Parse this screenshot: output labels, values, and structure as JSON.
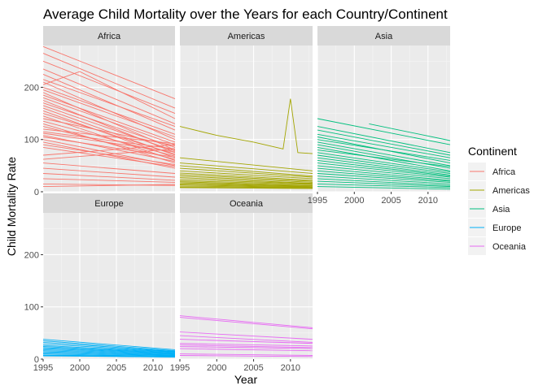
{
  "chart_data": {
    "type": "line",
    "title": "Average Child Mortality over the Years for each Country/Continent",
    "xlabel": "Year",
    "ylabel": "Child Mortality Rate",
    "xlim": [
      1995,
      2013
    ],
    "ylim": [
      0,
      280
    ],
    "x_ticks": [
      "1995",
      "2000",
      "2005",
      "2010"
    ],
    "y_ticks": [
      "0",
      "100",
      "200"
    ],
    "legend": {
      "title": "Continent",
      "position": "right",
      "entries": [
        "Africa",
        "Americas",
        "Asia",
        "Europe",
        "Oceania"
      ]
    },
    "grid": true,
    "facets": [
      {
        "name": "Africa",
        "color": "#F8766D",
        "series": [
          {
            "x": [
              1995,
              2013
            ],
            "y": [
              278,
              178
            ]
          },
          {
            "x": [
              1995,
              2013
            ],
            "y": [
              265,
              160
            ]
          },
          {
            "x": [
              1995,
              2013
            ],
            "y": [
              250,
              150
            ]
          },
          {
            "x": [
              1995,
              2013
            ],
            "y": [
              235,
              130
            ]
          },
          {
            "x": [
              1995,
              2013
            ],
            "y": [
              225,
              118
            ]
          },
          {
            "x": [
              1995,
              2000,
              2013
            ],
            "y": [
              205,
              230,
              140
            ]
          },
          {
            "x": [
              1995,
              2013
            ],
            "y": [
              215,
              125
            ]
          },
          {
            "x": [
              1995,
              2013
            ],
            "y": [
              210,
              100
            ]
          },
          {
            "x": [
              1995,
              2013
            ],
            "y": [
              200,
              110
            ]
          },
          {
            "x": [
              1995,
              2013
            ],
            "y": [
              195,
              105
            ]
          },
          {
            "x": [
              1995,
              2013
            ],
            "y": [
              190,
              80
            ]
          },
          {
            "x": [
              1995,
              2013
            ],
            "y": [
              185,
              95
            ]
          },
          {
            "x": [
              1995,
              2013
            ],
            "y": [
              180,
              90
            ]
          },
          {
            "x": [
              1995,
              2013
            ],
            "y": [
              175,
              75
            ]
          },
          {
            "x": [
              1995,
              2013
            ],
            "y": [
              170,
              85
            ]
          },
          {
            "x": [
              1995,
              2013
            ],
            "y": [
              165,
              78
            ]
          },
          {
            "x": [
              1995,
              2013
            ],
            "y": [
              160,
              70
            ]
          },
          {
            "x": [
              1995,
              2013
            ],
            "y": [
              155,
              65
            ]
          },
          {
            "x": [
              1995,
              2013
            ],
            "y": [
              150,
              72
            ]
          },
          {
            "x": [
              1995,
              2013
            ],
            "y": [
              145,
              60
            ]
          },
          {
            "x": [
              1995,
              2013
            ],
            "y": [
              140,
              88
            ]
          },
          {
            "x": [
              1995,
              2013
            ],
            "y": [
              135,
              68
            ]
          },
          {
            "x": [
              1995,
              2013
            ],
            "y": [
              130,
              55
            ]
          },
          {
            "x": [
              1995,
              2013
            ],
            "y": [
              125,
              62
            ]
          },
          {
            "x": [
              1995,
              2013
            ],
            "y": [
              120,
              92
            ]
          },
          {
            "x": [
              1995,
              2013
            ],
            "y": [
              115,
              82
            ]
          },
          {
            "x": [
              1995,
              2013
            ],
            "y": [
              112,
              76
            ]
          },
          {
            "x": [
              1995,
              2013
            ],
            "y": [
              108,
              58
            ]
          },
          {
            "x": [
              1995,
              2013
            ],
            "y": [
              105,
              66
            ]
          },
          {
            "x": [
              1995,
              2013
            ],
            "y": [
              100,
              50
            ]
          },
          {
            "x": [
              1995,
              2013
            ],
            "y": [
              95,
              45
            ]
          },
          {
            "x": [
              1995,
              2013
            ],
            "y": [
              90,
              52
            ]
          },
          {
            "x": [
              1995,
              2013
            ],
            "y": [
              85,
              48
            ]
          },
          {
            "x": [
              1995,
              2013
            ],
            "y": [
              70,
              90
            ]
          },
          {
            "x": [
              1995,
              2013
            ],
            "y": [
              62,
              82
            ]
          },
          {
            "x": [
              1995,
              2013
            ],
            "y": [
              55,
              35
            ]
          },
          {
            "x": [
              1995,
              2013
            ],
            "y": [
              45,
              28
            ]
          },
          {
            "x": [
              1995,
              2013
            ],
            "y": [
              35,
              22
            ]
          },
          {
            "x": [
              1995,
              2013
            ],
            "y": [
              25,
              18
            ]
          },
          {
            "x": [
              1995,
              2013
            ],
            "y": [
              15,
              12
            ]
          },
          {
            "x": [
              1995,
              2013
            ],
            "y": [
              10,
              14
            ]
          }
        ]
      },
      {
        "name": "Americas",
        "color": "#A3A500",
        "series": [
          {
            "x": [
              1995,
              2000,
              2005,
              2009,
              2010,
              2011,
              2013
            ],
            "y": [
              125,
              108,
              95,
              82,
              178,
              75,
              73
            ]
          },
          {
            "x": [
              1995,
              2013
            ],
            "y": [
              65,
              40
            ]
          },
          {
            "x": [
              1995,
              2013
            ],
            "y": [
              55,
              35
            ]
          },
          {
            "x": [
              1995,
              2013
            ],
            "y": [
              50,
              30
            ]
          },
          {
            "x": [
              1995,
              2013
            ],
            "y": [
              45,
              28
            ]
          },
          {
            "x": [
              1995,
              2013
            ],
            "y": [
              40,
              25
            ]
          },
          {
            "x": [
              1995,
              2013
            ],
            "y": [
              36,
              22
            ]
          },
          {
            "x": [
              1995,
              2013
            ],
            "y": [
              33,
              20
            ]
          },
          {
            "x": [
              1995,
              2013
            ],
            "y": [
              30,
              18
            ]
          },
          {
            "x": [
              1995,
              2013
            ],
            "y": [
              27,
              16
            ]
          },
          {
            "x": [
              1995,
              2013
            ],
            "y": [
              24,
              15
            ]
          },
          {
            "x": [
              1995,
              2013
            ],
            "y": [
              21,
              14
            ]
          },
          {
            "x": [
              1995,
              2013
            ],
            "y": [
              19,
              12
            ]
          },
          {
            "x": [
              1995,
              2013
            ],
            "y": [
              17,
              11
            ]
          },
          {
            "x": [
              1995,
              2013
            ],
            "y": [
              15,
              10
            ]
          },
          {
            "x": [
              1995,
              2013
            ],
            "y": [
              13,
              9
            ]
          },
          {
            "x": [
              1995,
              2013
            ],
            "y": [
              11,
              8
            ]
          },
          {
            "x": [
              1995,
              2013
            ],
            "y": [
              9,
              7
            ]
          },
          {
            "x": [
              1995,
              2013
            ],
            "y": [
              8,
              6
            ]
          }
        ]
      },
      {
        "name": "Asia",
        "color": "#00BF7D",
        "series": [
          {
            "x": [
              1995,
              2013
            ],
            "y": [
              140,
              90
            ]
          },
          {
            "x": [
              2002,
              2013
            ],
            "y": [
              130,
              98
            ]
          },
          {
            "x": [
              1995,
              2013
            ],
            "y": [
              125,
              75
            ]
          },
          {
            "x": [
              1995,
              2013
            ],
            "y": [
              118,
              70
            ]
          },
          {
            "x": [
              1995,
              2013
            ],
            "y": [
              110,
              65
            ]
          },
          {
            "x": [
              1995,
              2013
            ],
            "y": [
              105,
              55
            ]
          },
          {
            "x": [
              1995,
              2013
            ],
            "y": [
              100,
              60
            ]
          },
          {
            "x": [
              1995,
              2013
            ],
            "y": [
              95,
              50
            ]
          },
          {
            "x": [
              1995,
              2013
            ],
            "y": [
              90,
              45
            ]
          },
          {
            "x": [
              1995,
              2013
            ],
            "y": [
              85,
              40
            ]
          },
          {
            "x": [
              1995,
              2013
            ],
            "y": [
              80,
              48
            ]
          },
          {
            "x": [
              1995,
              2013
            ],
            "y": [
              75,
              38
            ]
          },
          {
            "x": [
              1995,
              2013
            ],
            "y": [
              70,
              35
            ]
          },
          {
            "x": [
              1995,
              2013
            ],
            "y": [
              65,
              32
            ]
          },
          {
            "x": [
              1995,
              2013
            ],
            "y": [
              60,
              30
            ]
          },
          {
            "x": [
              1995,
              2013
            ],
            "y": [
              55,
              28
            ]
          },
          {
            "x": [
              1995,
              2013
            ],
            "y": [
              50,
              25
            ]
          },
          {
            "x": [
              1995,
              2013
            ],
            "y": [
              45,
              22
            ]
          },
          {
            "x": [
              1995,
              2013
            ],
            "y": [
              40,
              20
            ]
          },
          {
            "x": [
              1995,
              2013
            ],
            "y": [
              35,
              18
            ]
          },
          {
            "x": [
              1995,
              2013
            ],
            "y": [
              30,
              15
            ]
          },
          {
            "x": [
              1995,
              2013
            ],
            "y": [
              25,
              12
            ]
          },
          {
            "x": [
              1995,
              2013
            ],
            "y": [
              20,
              10
            ]
          },
          {
            "x": [
              1995,
              2013
            ],
            "y": [
              15,
              8
            ]
          },
          {
            "x": [
              1995,
              2013
            ],
            "y": [
              10,
              5
            ]
          }
        ]
      },
      {
        "name": "Europe",
        "color": "#00B0F6",
        "series": [
          {
            "x": [
              1995,
              2013
            ],
            "y": [
              38,
              18
            ]
          },
          {
            "x": [
              1995,
              2013
            ],
            "y": [
              35,
              16
            ]
          },
          {
            "x": [
              1995,
              2013
            ],
            "y": [
              32,
              15
            ]
          },
          {
            "x": [
              1995,
              2013
            ],
            "y": [
              29,
              14
            ]
          },
          {
            "x": [
              1995,
              2013
            ],
            "y": [
              26,
              13
            ]
          },
          {
            "x": [
              1995,
              2013
            ],
            "y": [
              24,
              12
            ]
          },
          {
            "x": [
              1995,
              2013
            ],
            "y": [
              22,
              11
            ]
          },
          {
            "x": [
              1995,
              2013
            ],
            "y": [
              20,
              10
            ]
          },
          {
            "x": [
              1995,
              2013
            ],
            "y": [
              18,
              9
            ]
          },
          {
            "x": [
              1995,
              2013
            ],
            "y": [
              16,
              8
            ]
          },
          {
            "x": [
              1995,
              2013
            ],
            "y": [
              14,
              7
            ]
          },
          {
            "x": [
              1995,
              2013
            ],
            "y": [
              12,
              6
            ]
          },
          {
            "x": [
              1995,
              2013
            ],
            "y": [
              10,
              5
            ]
          },
          {
            "x": [
              1995,
              2013
            ],
            "y": [
              8,
              5
            ]
          },
          {
            "x": [
              1995,
              2013
            ],
            "y": [
              7,
              4
            ]
          },
          {
            "x": [
              1995,
              2013
            ],
            "y": [
              6,
              4
            ]
          }
        ]
      },
      {
        "name": "Oceania",
        "color": "#E76BF3",
        "series": [
          {
            "x": [
              1995,
              2013
            ],
            "y": [
              83,
              60
            ]
          },
          {
            "x": [
              1995,
              2013
            ],
            "y": [
              80,
              58
            ]
          },
          {
            "x": [
              1995,
              2013
            ],
            "y": [
              52,
              38
            ]
          },
          {
            "x": [
              1995,
              2013
            ],
            "y": [
              45,
              32
            ]
          },
          {
            "x": [
              1995,
              2013
            ],
            "y": [
              38,
              30
            ]
          },
          {
            "x": [
              1995,
              2013
            ],
            "y": [
              30,
              25
            ]
          },
          {
            "x": [
              1995,
              2013
            ],
            "y": [
              27,
              22
            ]
          },
          {
            "x": [
              1995,
              2013
            ],
            "y": [
              24,
              20
            ]
          },
          {
            "x": [
              1995,
              2013
            ],
            "y": [
              20,
              16
            ]
          },
          {
            "x": [
              1995,
              2013
            ],
            "y": [
              10,
              7
            ]
          },
          {
            "x": [
              1995,
              2013
            ],
            "y": [
              7,
              5
            ]
          }
        ]
      }
    ]
  }
}
